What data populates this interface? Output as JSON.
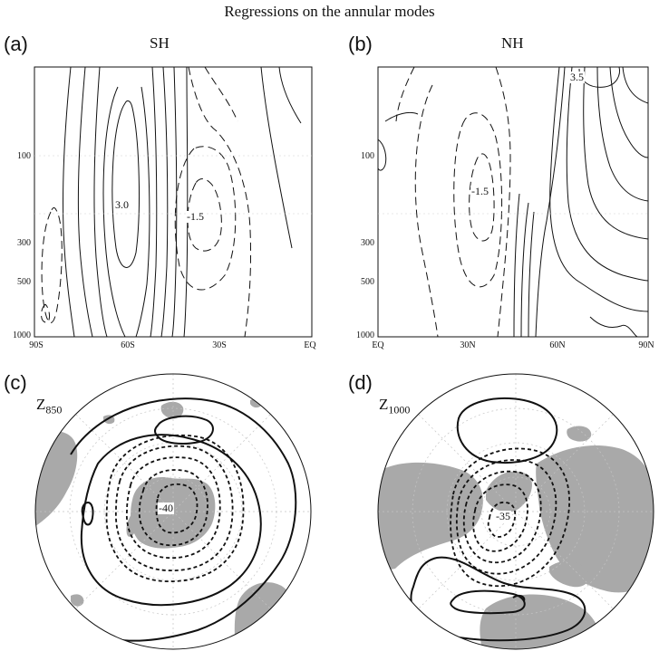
{
  "figure": {
    "title": "Regressions on the annular modes"
  },
  "panels": {
    "a": {
      "letter": "(a)",
      "title": "SH",
      "y_ticks": [
        "100",
        "300",
        "500",
        "1000"
      ],
      "x_ticks": [
        "90S",
        "60S",
        "30S",
        "EQ"
      ],
      "contour_labels": [
        "3.0",
        "-1.5"
      ]
    },
    "b": {
      "letter": "(b)",
      "title": "NH",
      "y_ticks": [
        "100",
        "300",
        "500",
        "1000"
      ],
      "x_ticks": [
        "EQ",
        "30N",
        "60N",
        "90N"
      ],
      "contour_labels": [
        "3.5",
        "-1.5"
      ]
    },
    "c": {
      "letter": "(c)",
      "field": "Z",
      "level": "850",
      "contour_label": "-40"
    },
    "d": {
      "letter": "(d)",
      "field": "Z",
      "level": "1000",
      "contour_label": "-35"
    }
  },
  "style": {
    "land_color": "#a9a9a9",
    "line_color": "#111111",
    "grid_color": "#bdbdbd"
  }
}
